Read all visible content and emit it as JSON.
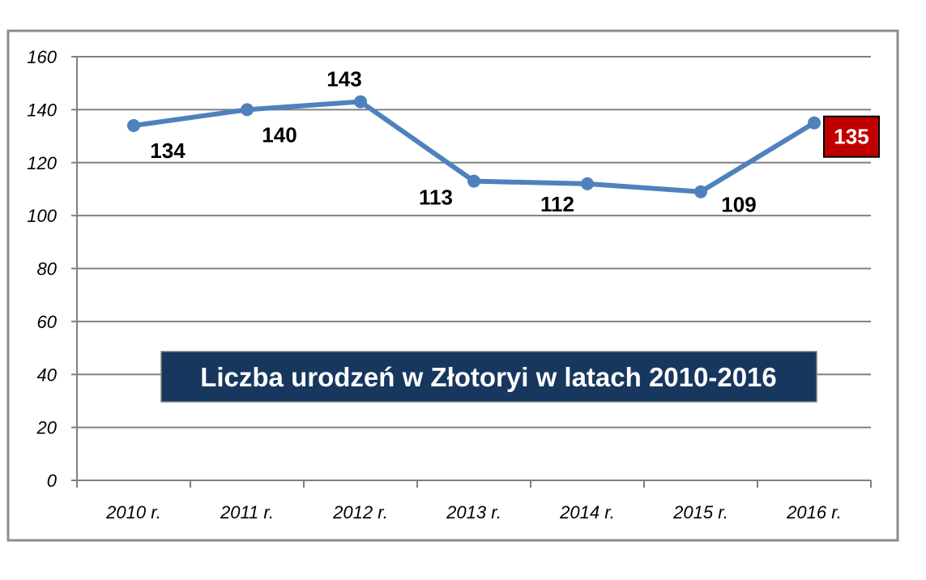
{
  "chart_data": {
    "type": "line",
    "title": "Liczba urodzeń w Złotoryi w latach 2010-2016",
    "categories": [
      "2010 r.",
      "2011 r.",
      "2012 r.",
      "2013 r.",
      "2014 r.",
      "2015 r.",
      "2016 r."
    ],
    "series": [
      {
        "values": [
          134,
          140,
          143,
          113,
          112,
          109,
          135
        ]
      }
    ],
    "data_labels": [
      "134",
      "140",
      "143",
      "113",
      "112",
      "109",
      "135"
    ],
    "highlighted_label": "135",
    "yticks": [
      "0",
      "20",
      "40",
      "60",
      "80",
      "100",
      "120",
      "140",
      "160"
    ],
    "ylim": [
      0,
      160
    ],
    "grid": true,
    "legend": "none",
    "colors": {
      "line": "#4f81bd",
      "grid": "#808080",
      "frame": "#8c8c8c",
      "title_bg": "#17375e",
      "highlight_bg": "#c00000"
    }
  }
}
